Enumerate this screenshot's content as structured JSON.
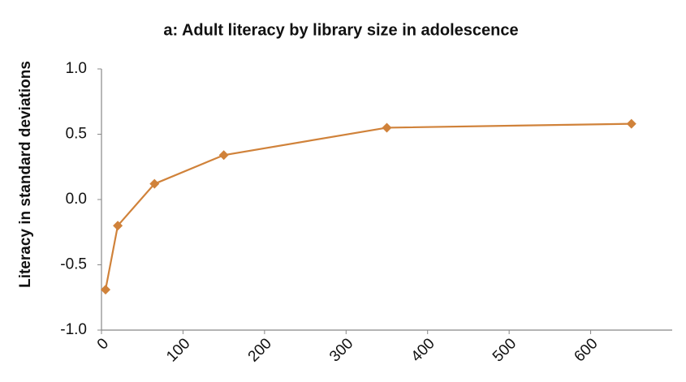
{
  "chart_data": {
    "type": "line",
    "title": "a:  Adult literacy by library size in adolescence",
    "y_label": "Literacy in standard deviations",
    "x": [
      5,
      20,
      65,
      150,
      350,
      650
    ],
    "values": [
      -0.69,
      -0.2,
      0.12,
      0.34,
      0.55,
      0.58
    ],
    "color": "#d0823a",
    "xlim": [
      0,
      700
    ],
    "xticks": [
      0,
      100,
      200,
      300,
      400,
      500,
      600
    ],
    "ylim": [
      -1,
      1
    ],
    "yticks": [
      {
        "value": -1,
        "label": "-1.0"
      },
      {
        "value": -0.5,
        "label": "-0.5"
      },
      {
        "value": 0,
        "label": "0.0"
      },
      {
        "value": 0.5,
        "label": "0.5"
      },
      {
        "value": 1,
        "label": "1.0"
      }
    ],
    "grid": false
  }
}
